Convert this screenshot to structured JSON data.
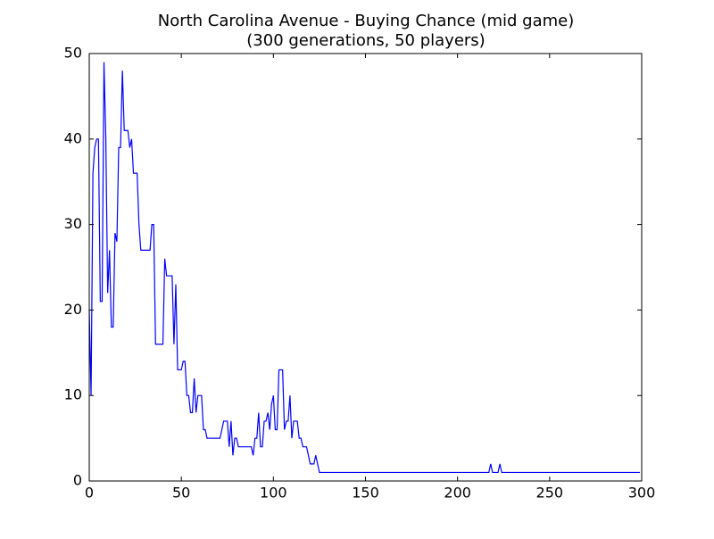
{
  "chart_data": {
    "type": "line",
    "title": "North Carolina Avenue - Buying Chance (mid game)",
    "subtitle": "(300 generations, 50 players)",
    "x": [
      0,
      1,
      2,
      3,
      4,
      5,
      6,
      7,
      8,
      9,
      10,
      11,
      12,
      13,
      14,
      15,
      16,
      17,
      18,
      19,
      20,
      21,
      22,
      23,
      24,
      25,
      26,
      27,
      28,
      29,
      30,
      31,
      32,
      33,
      34,
      35,
      36,
      37,
      38,
      39,
      40,
      41,
      42,
      43,
      44,
      45,
      46,
      47,
      48,
      49,
      50,
      51,
      52,
      53,
      54,
      55,
      56,
      57,
      58,
      59,
      60,
      61,
      62,
      63,
      64,
      65,
      66,
      67,
      68,
      69,
      70,
      71,
      72,
      73,
      74,
      75,
      76,
      77,
      78,
      79,
      80,
      81,
      82,
      83,
      84,
      85,
      86,
      87,
      88,
      89,
      90,
      91,
      92,
      93,
      94,
      95,
      96,
      97,
      98,
      99,
      100,
      101,
      102,
      103,
      104,
      105,
      106,
      107,
      108,
      109,
      110,
      111,
      112,
      113,
      114,
      115,
      116,
      117,
      118,
      119,
      120,
      121,
      122,
      123,
      124,
      125,
      217,
      218,
      219,
      222,
      223,
      224,
      299
    ],
    "series": [
      {
        "color": "#0000ff",
        "values": [
          20,
          10,
          36,
          39,
          40,
          40,
          21,
          21,
          49,
          40,
          22,
          27,
          18,
          18,
          29,
          28,
          39,
          39,
          48,
          41,
          41,
          41,
          39,
          40,
          36,
          36,
          36,
          30,
          27,
          27,
          27,
          27,
          27,
          27,
          30,
          30,
          16,
          16,
          16,
          16,
          16,
          26,
          24,
          24,
          24,
          24,
          16,
          23,
          13,
          13,
          13,
          14,
          14,
          10,
          10,
          8,
          8,
          12,
          8,
          10,
          10,
          10,
          6,
          6,
          5,
          5,
          5,
          5,
          5,
          5,
          5,
          5,
          6,
          7,
          7,
          7,
          4,
          7,
          3,
          5,
          5,
          4,
          4,
          4,
          4,
          4,
          4,
          4,
          4,
          3,
          5,
          5,
          8,
          4,
          4,
          7,
          7,
          8,
          6,
          9,
          10,
          6,
          6,
          13,
          13,
          13,
          6,
          7,
          7,
          10,
          5,
          7,
          7,
          7,
          5,
          5,
          4,
          4,
          4,
          3,
          2,
          2,
          2,
          3,
          2,
          1,
          1,
          2,
          1,
          1,
          2,
          1,
          1
        ]
      }
    ],
    "xlim": [
      0,
      300
    ],
    "xticks": [
      0,
      50,
      100,
      150,
      200,
      250,
      300
    ],
    "ylim": [
      0,
      50
    ],
    "yticks": [
      0,
      10,
      20,
      30,
      40,
      50
    ]
  }
}
